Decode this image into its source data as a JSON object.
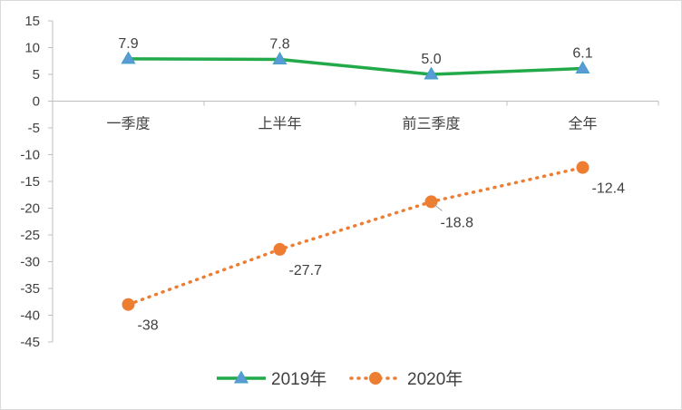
{
  "chart_data": {
    "type": "line",
    "categories": [
      "一季度",
      "上半年",
      "前三季度",
      "全年"
    ],
    "ylim": [
      -45,
      15
    ],
    "y_ticks": [
      15,
      10,
      5,
      0,
      -5,
      -10,
      -15,
      -20,
      -25,
      -30,
      -35,
      -40,
      -45
    ],
    "grid": false,
    "legend_position": "bottom",
    "series": [
      {
        "name": "2019年",
        "values": [
          7.9,
          7.8,
          5.0,
          6.1
        ],
        "data_labels": [
          "7.9",
          "7.8",
          "5.0",
          "6.1"
        ],
        "color": "#22aa4a",
        "marker_color": "#5b9bd5",
        "line_style": "solid",
        "marker": "triangle"
      },
      {
        "name": "2020年",
        "values": [
          -38,
          -27.7,
          -18.8,
          -12.4
        ],
        "data_labels": [
          "-38",
          "-27.7",
          "-18.8",
          "-12.4"
        ],
        "color": "#ed7d31",
        "line_style": "dotted",
        "marker": "circle"
      }
    ]
  }
}
